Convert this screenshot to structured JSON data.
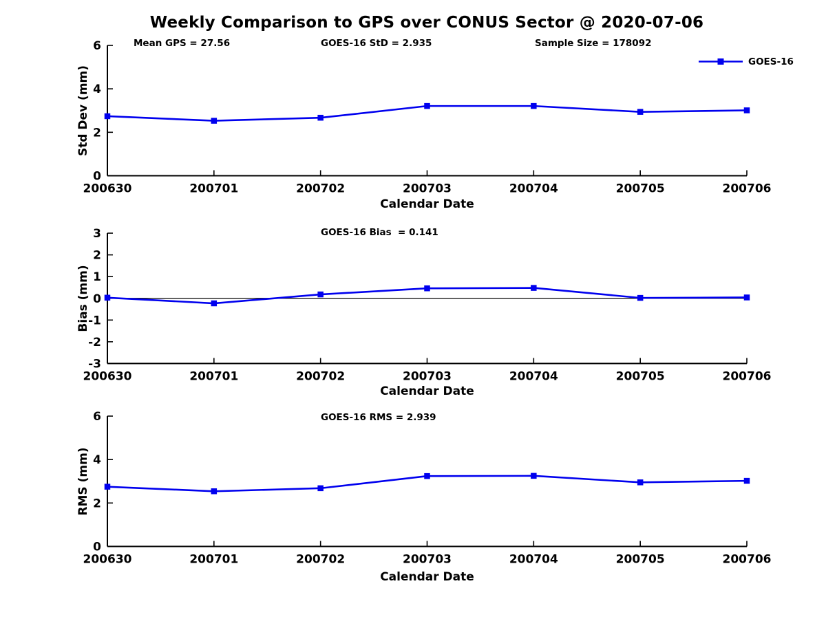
{
  "figure": {
    "title": "Weekly Comparison to GPS over CONUS Sector @ 2020-07-06",
    "background_color": "#ffffff",
    "line_color": "#0000EE",
    "axis_color": "#000000",
    "text_color": "#000000"
  },
  "legend": {
    "label": "GOES-16",
    "position": "top-right",
    "marker": "filled-square"
  },
  "chart_data": [
    {
      "type": "line",
      "title": "",
      "xlabel": "Calendar Date",
      "ylabel": "Std Dev (mm)",
      "categories": [
        "200630",
        "200701",
        "200702",
        "200703",
        "200704",
        "200705",
        "200706"
      ],
      "series": [
        {
          "name": "GOES-16",
          "values": [
            2.74,
            2.53,
            2.67,
            3.21,
            3.21,
            2.94,
            3.01
          ]
        }
      ],
      "ylim": [
        0,
        6
      ],
      "yticks": [
        0,
        2,
        4,
        6
      ],
      "grid": false,
      "zero_line": false,
      "legend_position": "top-right",
      "annotations": [
        "Mean GPS = 27.56",
        "GOES-16 StD = 2.935",
        "Sample Size = 178092"
      ]
    },
    {
      "type": "line",
      "title": "",
      "xlabel": "Calendar Date",
      "ylabel": "Bias (mm)",
      "categories": [
        "200630",
        "200701",
        "200702",
        "200703",
        "200704",
        "200705",
        "200706"
      ],
      "series": [
        {
          "name": "GOES-16",
          "values": [
            0.03,
            -0.23,
            0.18,
            0.46,
            0.48,
            0.02,
            0.04
          ]
        }
      ],
      "ylim": [
        -3,
        3
      ],
      "yticks": [
        3,
        2,
        1,
        0,
        -1,
        -2,
        -3
      ],
      "grid": false,
      "zero_line": true,
      "legend_position": "none",
      "annotations": [
        "GOES-16 Bias  = 0.141"
      ]
    },
    {
      "type": "line",
      "title": "",
      "xlabel": "Calendar Date",
      "ylabel": "RMS (mm)",
      "categories": [
        "200630",
        "200701",
        "200702",
        "200703",
        "200704",
        "200705",
        "200706"
      ],
      "series": [
        {
          "name": "GOES-16",
          "values": [
            2.75,
            2.54,
            2.68,
            3.24,
            3.25,
            2.95,
            3.02
          ]
        }
      ],
      "ylim": [
        0,
        6
      ],
      "yticks": [
        0,
        2,
        4,
        6
      ],
      "grid": false,
      "zero_line": false,
      "legend_position": "none",
      "annotations": [
        "GOES-16 RMS = 2.939"
      ]
    }
  ]
}
